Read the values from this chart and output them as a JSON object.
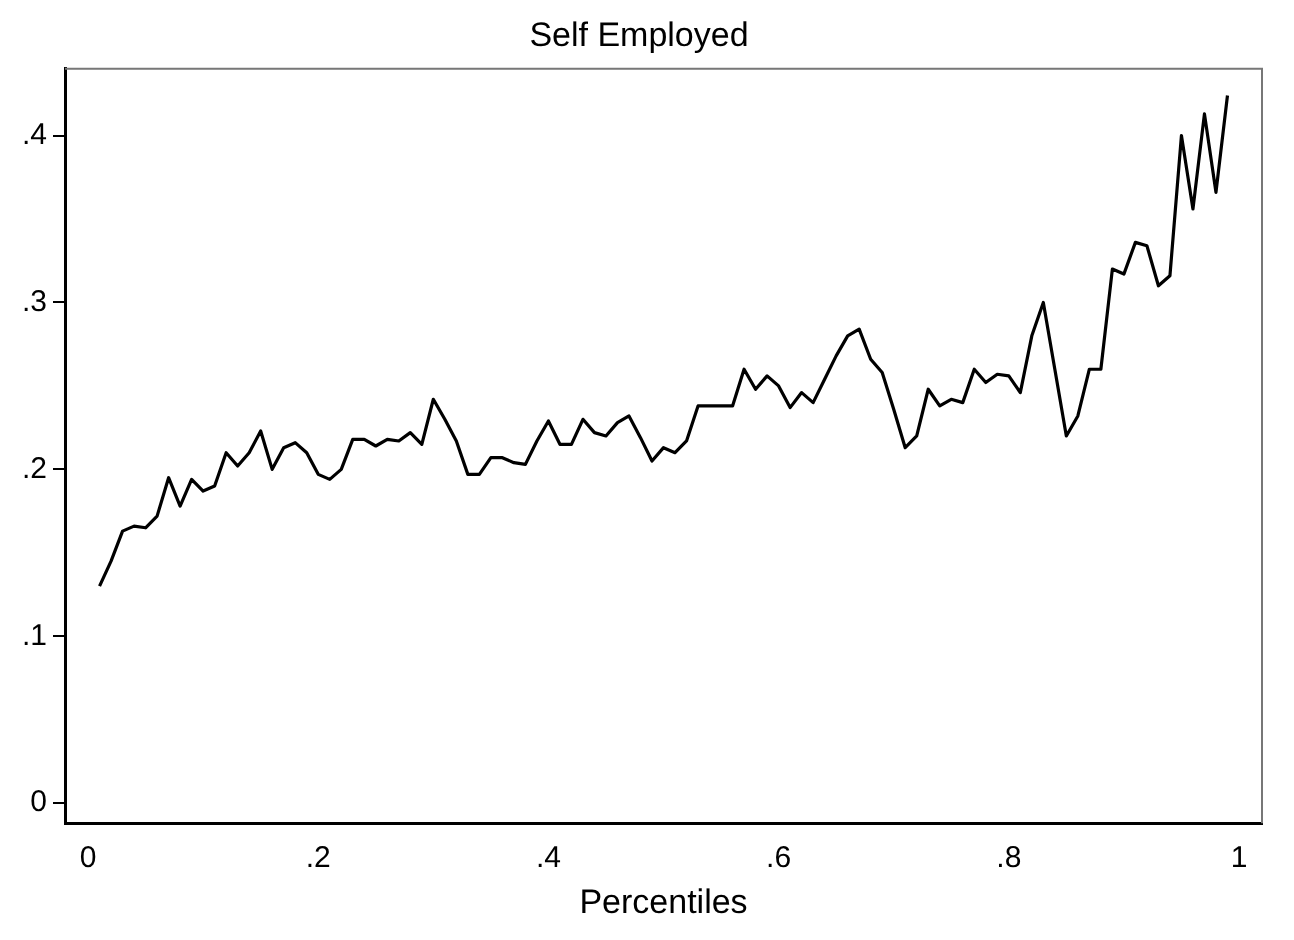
{
  "chart_data": {
    "type": "line",
    "title": "Self Employed",
    "xlabel": "Percentiles",
    "x": [
      0.01,
      0.02,
      0.03,
      0.04,
      0.05,
      0.06,
      0.07,
      0.08,
      0.09,
      0.1,
      0.11,
      0.12,
      0.13,
      0.14,
      0.15,
      0.16,
      0.17,
      0.18,
      0.19,
      0.2,
      0.21,
      0.22,
      0.23,
      0.24,
      0.25,
      0.26,
      0.27,
      0.28,
      0.29,
      0.3,
      0.31,
      0.32,
      0.33,
      0.34,
      0.35,
      0.36,
      0.37,
      0.38,
      0.39,
      0.4,
      0.41,
      0.42,
      0.43,
      0.44,
      0.45,
      0.46,
      0.47,
      0.48,
      0.49,
      0.5,
      0.51,
      0.52,
      0.53,
      0.54,
      0.55,
      0.56,
      0.57,
      0.58,
      0.59,
      0.6,
      0.61,
      0.62,
      0.63,
      0.64,
      0.65,
      0.66,
      0.67,
      0.68,
      0.69,
      0.7,
      0.71,
      0.72,
      0.73,
      0.74,
      0.75,
      0.76,
      0.77,
      0.78,
      0.79,
      0.8,
      0.81,
      0.82,
      0.83,
      0.84,
      0.85,
      0.86,
      0.87,
      0.88,
      0.89,
      0.9,
      0.91,
      0.92,
      0.93,
      0.94,
      0.95,
      0.96,
      0.97,
      0.98,
      0.99
    ],
    "series": [
      {
        "color": "#000000",
        "values": [
          0.13,
          0.145,
          0.163,
          0.166,
          0.165,
          0.172,
          0.195,
          0.178,
          0.194,
          0.187,
          0.19,
          0.21,
          0.202,
          0.21,
          0.223,
          0.2,
          0.213,
          0.216,
          0.21,
          0.197,
          0.194,
          0.2,
          0.218,
          0.218,
          0.214,
          0.218,
          0.217,
          0.222,
          0.215,
          0.242,
          0.23,
          0.217,
          0.197,
          0.197,
          0.207,
          0.207,
          0.204,
          0.203,
          0.217,
          0.229,
          0.215,
          0.215,
          0.23,
          0.222,
          0.22,
          0.228,
          0.232,
          0.219,
          0.205,
          0.213,
          0.21,
          0.217,
          0.238,
          0.238,
          0.238,
          0.238,
          0.26,
          0.248,
          0.256,
          0.25,
          0.237,
          0.246,
          0.24,
          0.254,
          0.268,
          0.28,
          0.284,
          0.266,
          0.258,
          0.236,
          0.213,
          0.22,
          0.248,
          0.238,
          0.242,
          0.24,
          0.26,
          0.252,
          0.257,
          0.256,
          0.246,
          0.28,
          0.3,
          0.26,
          0.22,
          0.232,
          0.26,
          0.26,
          0.32,
          0.317,
          0.336,
          0.334,
          0.31,
          0.316,
          0.4,
          0.356,
          0.413,
          0.366,
          0.424
        ]
      }
    ],
    "xlim": [
      -0.02,
      1.02
    ],
    "xticks": [
      0,
      {
        "value": 0.2,
        "label": ".2"
      },
      {
        "value": 0.4,
        "label": ".4"
      },
      {
        "value": 0.6,
        "label": ".6"
      },
      {
        "value": 0.8,
        "label": ".8"
      },
      1
    ],
    "ylim": [
      -0.012,
      0.44
    ],
    "yticks": [
      0,
      {
        "value": 0.1,
        "label": ".1"
      },
      {
        "value": 0.2,
        "label": ".2"
      },
      {
        "value": 0.3,
        "label": ".3"
      },
      {
        "value": 0.4,
        "label": ".4"
      }
    ],
    "grid": false,
    "legend": false,
    "marker": "none",
    "line_style": "solid"
  }
}
